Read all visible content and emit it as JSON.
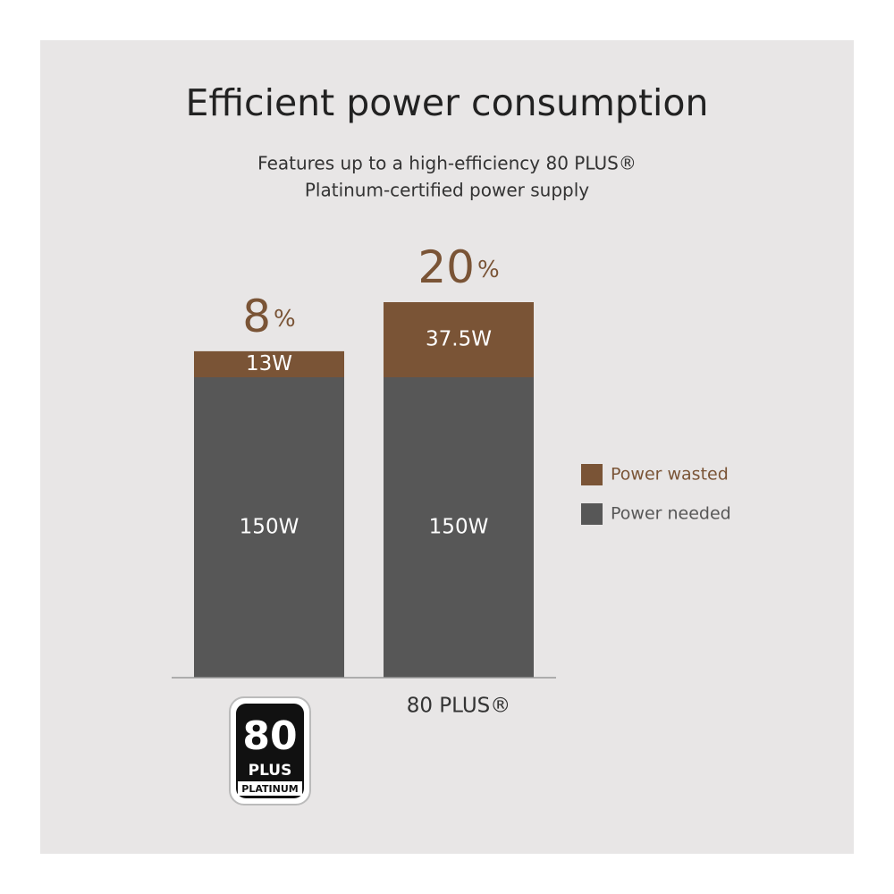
{
  "chart_data": {
    "type": "stacked_bar",
    "title": "Efficient power consumption",
    "subtitle": [
      "Features up to a high-efficiency 80 PLUS®",
      "Platinum-certified power supply"
    ],
    "categories": [
      null,
      "80 PLUS®"
    ],
    "badge": {
      "number": "80",
      "brand": "PLUS",
      "tier": "PLATINUM"
    },
    "series": [
      {
        "name": "Power needed",
        "color": "#575757",
        "values": [
          150,
          150
        ],
        "value_labels": [
          "150W",
          "150W"
        ]
      },
      {
        "name": "Power wasted",
        "color": "#7a5436",
        "values": [
          13,
          37.5
        ],
        "value_labels": [
          "13W",
          "37.5W"
        ]
      }
    ],
    "annotations": [
      "8%",
      "20%"
    ],
    "ylim": [
      0,
      200
    ],
    "legend": "right"
  }
}
